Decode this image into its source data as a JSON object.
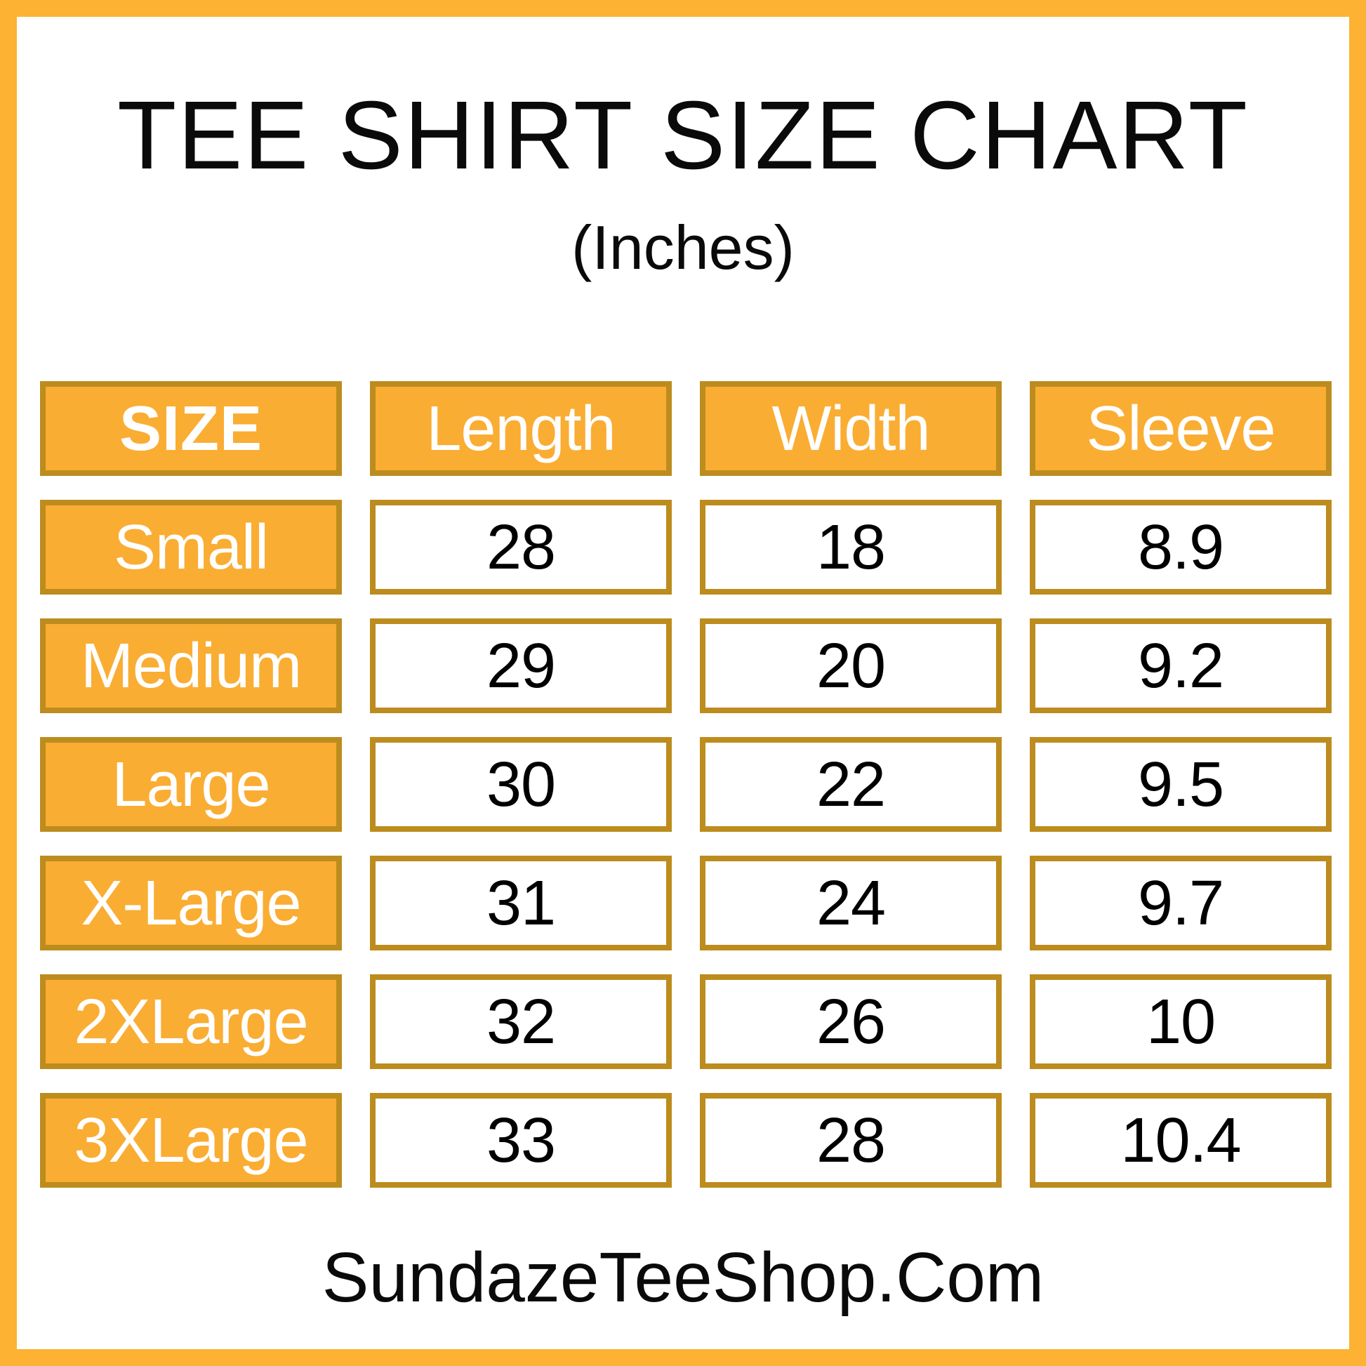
{
  "page": {
    "title": "TEE SHIRT SIZE CHART",
    "subtitle": "(Inches)",
    "footer": "SundazeTeeShop.Com"
  },
  "colors": {
    "frame_orange": "#FDB233",
    "cell_orange": "#FAAD33",
    "cell_border_gold": "#BD8C1E",
    "header_text": "#FFFFFF",
    "value_text": "#000000",
    "title_text": "#0A0A0A"
  },
  "chart_data": {
    "type": "table",
    "title": "TEE SHIRT SIZE CHART",
    "unit_note": "(Inches)",
    "columns": [
      "SIZE",
      "Length",
      "Width",
      "Sleeve"
    ],
    "rows": [
      {
        "size": "Small",
        "length": 28,
        "width": 18,
        "sleeve": 8.9
      },
      {
        "size": "Medium",
        "length": 29,
        "width": 20,
        "sleeve": 9.2
      },
      {
        "size": "Large",
        "length": 30,
        "width": 22,
        "sleeve": 9.5
      },
      {
        "size": "X-Large",
        "length": 31,
        "width": 24,
        "sleeve": 9.7
      },
      {
        "size": "2XLarge",
        "length": 32,
        "width": 26,
        "sleeve": 10
      },
      {
        "size": "3XLarge",
        "length": 33,
        "width": 28,
        "sleeve": 10.4
      }
    ],
    "layout": {
      "header_fill": "orange",
      "row_label_fill": "orange",
      "value_fill": "white"
    },
    "footer": "SundazeTeeShop.Com"
  }
}
